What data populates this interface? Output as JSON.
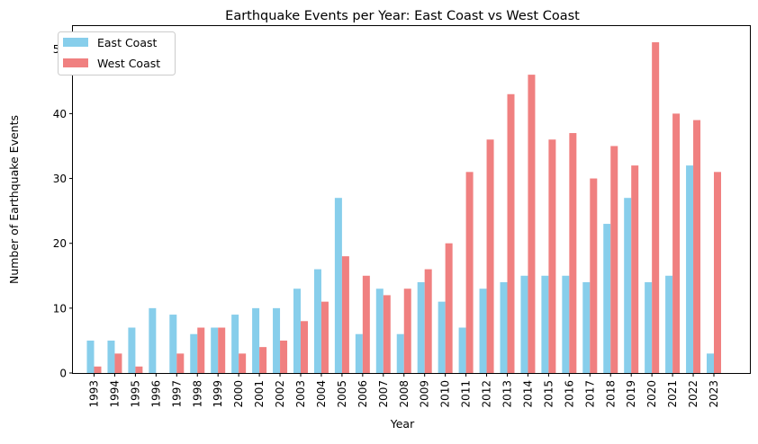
{
  "chart_data": {
    "type": "bar",
    "title": "Earthquake Events per Year: East Coast vs West Coast",
    "xlabel": "Year",
    "ylabel": "Number of Earthquake Events",
    "ylim": [
      0,
      53.5
    ],
    "yticks": [
      0,
      10,
      20,
      30,
      40,
      50
    ],
    "grid": false,
    "legend_position": "top-left",
    "categories": [
      "1993",
      "1994",
      "1995",
      "1996",
      "1997",
      "1998",
      "1999",
      "2000",
      "2001",
      "2002",
      "2003",
      "2004",
      "2005",
      "2006",
      "2007",
      "2008",
      "2009",
      "2010",
      "2011",
      "2012",
      "2013",
      "2014",
      "2015",
      "2016",
      "2017",
      "2018",
      "2019",
      "2020",
      "2021",
      "2022",
      "2023"
    ],
    "series": [
      {
        "name": "East Coast",
        "color": "#87ceeb",
        "values": [
          5,
          5,
          7,
          10,
          9,
          6,
          7,
          9,
          10,
          10,
          13,
          16,
          27,
          6,
          13,
          6,
          14,
          11,
          7,
          13,
          14,
          15,
          15,
          15,
          14,
          23,
          27,
          14,
          15,
          32,
          3
        ]
      },
      {
        "name": "West Coast",
        "color": "#f08080",
        "values": [
          1,
          3,
          1,
          0,
          3,
          7,
          7,
          3,
          4,
          5,
          8,
          11,
          18,
          15,
          12,
          13,
          16,
          20,
          31,
          36,
          43,
          46,
          36,
          37,
          30,
          35,
          32,
          51,
          40,
          39,
          31
        ]
      }
    ]
  }
}
